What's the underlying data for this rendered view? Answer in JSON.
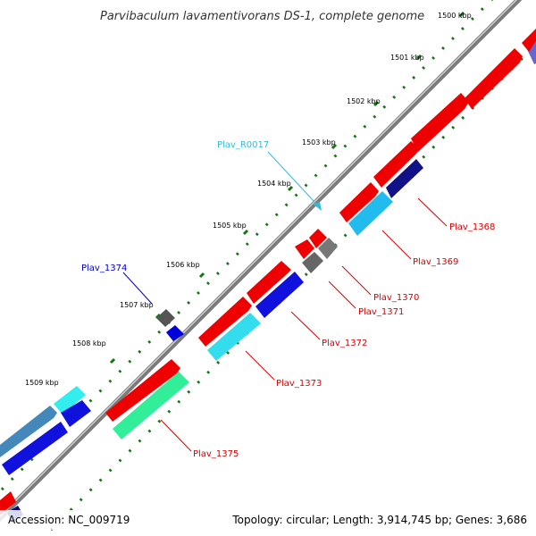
{
  "title": "Parvibaculum lavamentivorans DS-1, complete genome",
  "footer": {
    "accession": "Accession: NC_009719",
    "summary": "Topology: circular; Length: 3,914,745 bp; Genes: 3,686"
  },
  "ticks": [
    "1500 kbp",
    "1501 kbp",
    "1502 kbp",
    "1503 kbp",
    "1504 kbp",
    "1505 kbp",
    "1506 kbp",
    "1507 kbp",
    "1508 kbp",
    "1509 kbp"
  ],
  "labels": [
    {
      "id": "Plav_R0017",
      "text": "Plav_R0017",
      "color": "#33bbdd"
    },
    {
      "id": "Plav_1374",
      "text": "Plav_1374",
      "color": "#0000cc"
    },
    {
      "id": "Plav_1368",
      "text": "Plav_1368",
      "color": "#dd0000"
    },
    {
      "id": "Plav_1369",
      "text": "Plav_1369",
      "color": "#dd0000"
    },
    {
      "id": "Plav_1370",
      "text": "Plav_1370",
      "color": "#dd0000"
    },
    {
      "id": "Plav_1371",
      "text": "Plav_1371",
      "color": "#dd0000"
    },
    {
      "id": "Plav_1372",
      "text": "Plav_1372",
      "color": "#dd0000"
    },
    {
      "id": "Plav_1373",
      "text": "Plav_1373",
      "color": "#dd0000"
    },
    {
      "id": "Plav_1375",
      "text": "Plav_1375",
      "color": "#dd0000"
    }
  ],
  "colors": {
    "backbone": "#8a8a8a",
    "forward_cds": "#ee0000",
    "reverse_cds_blue": "#1111dd",
    "reverse_cds_cyan": "#22ddee",
    "green_cds": "#33ee99",
    "gray_cds": "#666666",
    "dotted_ring": "#117711"
  }
}
